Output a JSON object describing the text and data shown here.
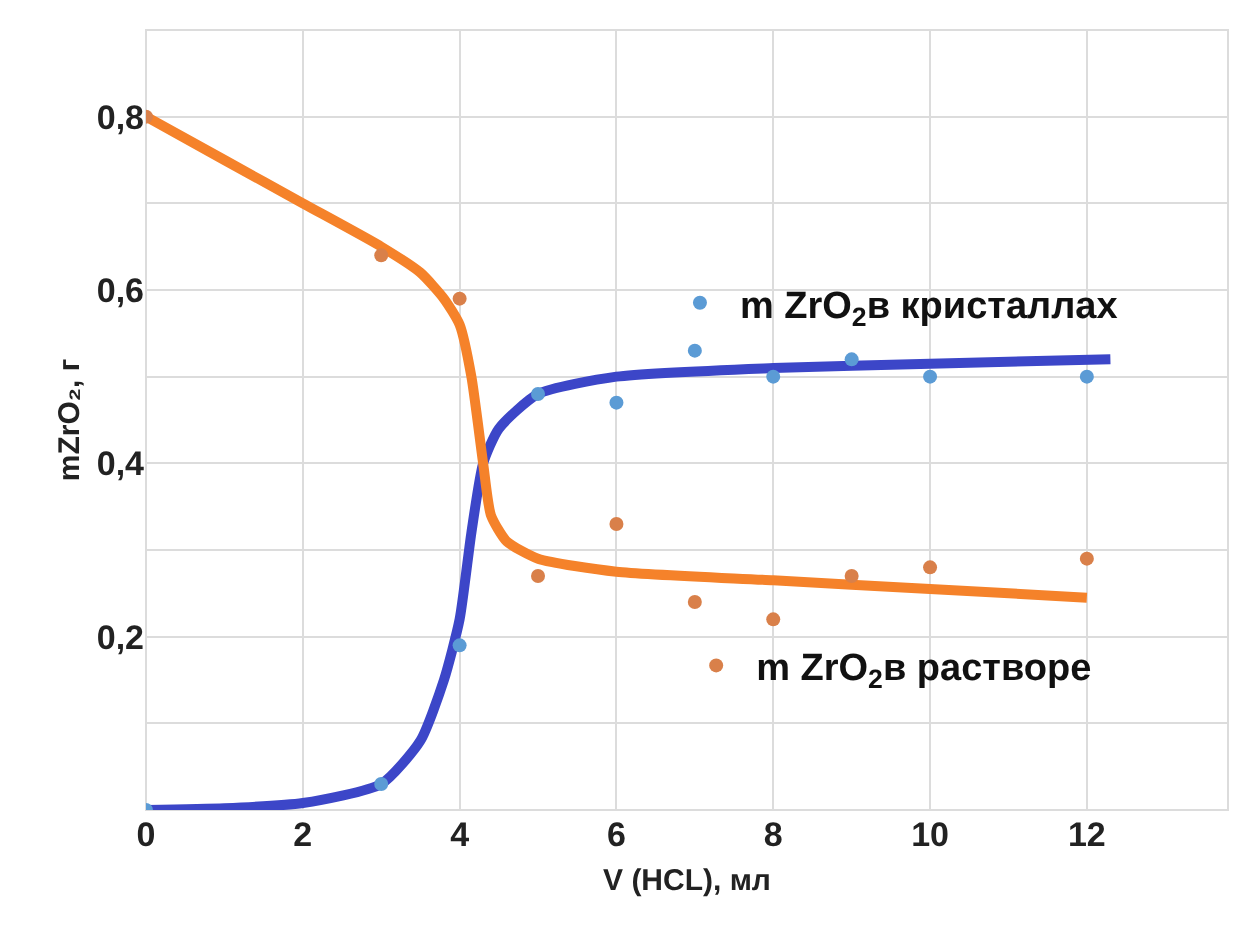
{
  "chart_data": {
    "type": "scatter",
    "xlabel": "V (HCL), мл",
    "ylabel": "mZrO₂, г",
    "xlim": [
      0,
      13.8
    ],
    "xticks": [
      0,
      2,
      4,
      6,
      8,
      10,
      12
    ],
    "ylim": [
      0,
      0.9
    ],
    "yticks": [
      {
        "value": 0.1,
        "label": null
      },
      {
        "value": 0.2,
        "label": "0,2"
      },
      {
        "value": 0.3,
        "label": null
      },
      {
        "value": 0.4,
        "label": "0,4"
      },
      {
        "value": 0.5,
        "label": null
      },
      {
        "value": 0.6,
        "label": "0,6"
      },
      {
        "value": 0.7,
        "label": null
      },
      {
        "value": 0.8,
        "label": "0,8"
      }
    ],
    "grid": true,
    "legend": "right",
    "series": [
      {
        "type": "line",
        "color": "#3c46c8",
        "x": [
          0,
          1,
          2,
          3,
          3.5,
          3.8,
          4,
          4.15,
          4.3,
          4.5,
          5,
          6,
          8,
          10,
          12.3
        ],
        "values": [
          0,
          0.002,
          0.008,
          0.03,
          0.08,
          0.15,
          0.22,
          0.32,
          0.4,
          0.44,
          0.48,
          0.5,
          0.51,
          0.515,
          0.52
        ]
      },
      {
        "type": "line",
        "color": "#f5822a",
        "x": [
          0,
          1,
          2,
          3,
          3.5,
          3.8,
          4,
          4.15,
          4.3,
          4.4,
          4.6,
          5,
          6,
          8,
          10,
          12
        ],
        "values": [
          0.8,
          0.75,
          0.7,
          0.65,
          0.62,
          0.59,
          0.56,
          0.5,
          0.4,
          0.34,
          0.31,
          0.29,
          0.275,
          0.265,
          0.255,
          0.245
        ]
      },
      {
        "name": "m ZrO$_{2}$в кристаллах",
        "color": "#5b9bd5",
        "marker": "circle",
        "x": [
          0,
          3,
          4,
          5,
          6,
          7,
          8,
          9,
          10,
          12
        ],
        "values": [
          0,
          0.03,
          0.19,
          0.48,
          0.47,
          0.53,
          0.5,
          0.52,
          0.5,
          0.5
        ]
      },
      {
        "name": "m ZrO$_{2}$в растворе",
        "color": "#d9804a",
        "marker": "circle",
        "x": [
          0,
          3,
          4,
          5,
          6,
          7,
          8,
          9,
          10,
          12
        ],
        "values": [
          0.8,
          0.64,
          0.59,
          0.27,
          0.33,
          0.24,
          0.22,
          0.27,
          0.28,
          0.29
        ]
      }
    ]
  }
}
